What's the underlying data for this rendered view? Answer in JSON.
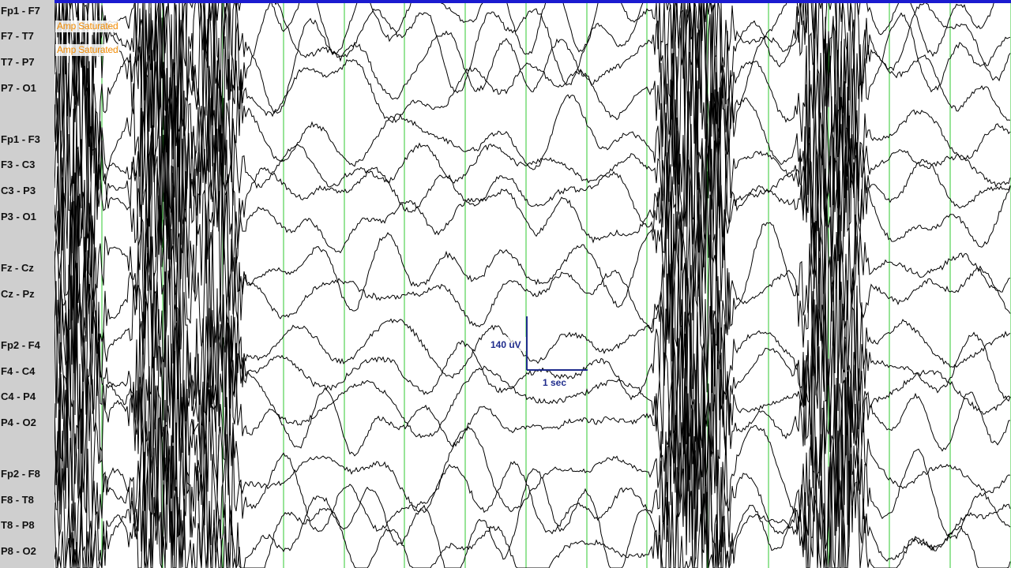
{
  "window": {
    "top_bar_color": "#1b1bd0"
  },
  "channels": [
    "Fp1 - F7",
    "F7 - T7",
    "T7 - P7",
    "P7 - O1",
    "Fp1 - F3",
    "F3 - C3",
    "C3 - P3",
    "P3 - O1",
    "Fz - Cz",
    "Cz - Pz",
    "Fp2 - F4",
    "F4 - C4",
    "C4 - P4",
    "P4 - O2",
    "Fp2 - F8",
    "F8 - T8",
    "T8 - P8",
    "P8 - O2"
  ],
  "warnings": [
    "Amp Saturated",
    "Amp Saturated"
  ],
  "scale_bar": {
    "amplitude_label": "140 uV",
    "time_label": "1 sec"
  },
  "colors": {
    "gridline": "#32c832",
    "trace": "#000000",
    "scale_bar": "#1f2c8c",
    "warning": "#f08a00",
    "sidebar": "#cfcfcf"
  }
}
